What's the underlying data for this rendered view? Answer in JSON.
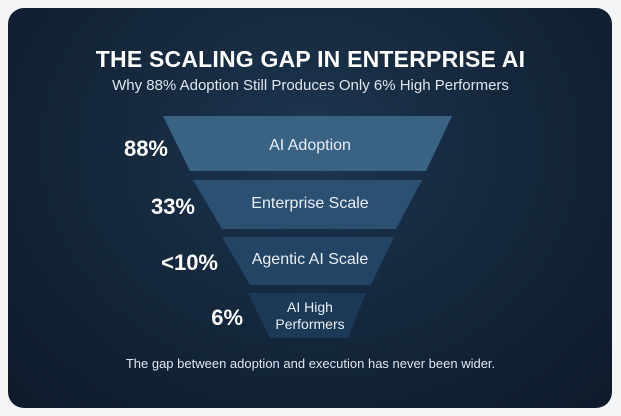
{
  "title": "THE SCALING GAP IN ENTERPRISE AI",
  "subtitle": "Why 88% Adoption Still Produces Only 6% High Performers",
  "footer": "The gap between adoption and execution has never been wider.",
  "chart_data": {
    "type": "funnel",
    "title": "THE SCALING GAP IN ENTERPRISE AI",
    "stages": [
      {
        "label": "AI Adoption",
        "value_label": "88%",
        "value": 88,
        "color": "#3a6283"
      },
      {
        "label": "Enterprise Scale",
        "value_label": "33%",
        "value": 33,
        "color": "#2c5072"
      },
      {
        "label": "Agentic AI Scale",
        "value_label": "<10%",
        "value": 10,
        "color": "#234464"
      },
      {
        "label": "AI High Performers",
        "value_label": "6%",
        "value": 6,
        "color": "#1c3957"
      }
    ]
  }
}
